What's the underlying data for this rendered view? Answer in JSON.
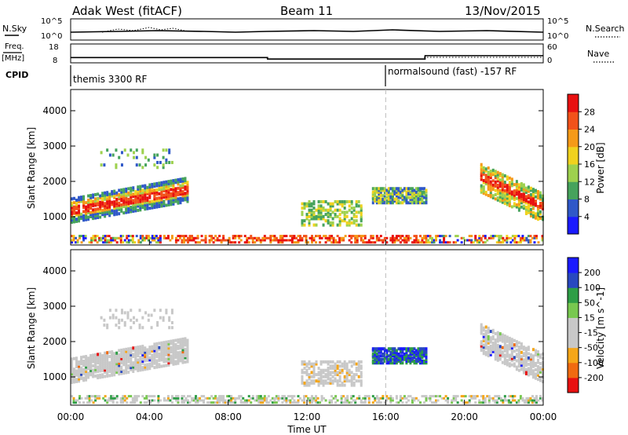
{
  "header": {
    "station": "Adak West (fitACF)",
    "beam": "Beam 11",
    "date": "13/Nov/2015"
  },
  "top_panels": {
    "nsky_label": "N.Sky",
    "nsky_ticks": [
      "10^5",
      "10^0"
    ],
    "nsearch_label": "N.Search",
    "freq_label_1": "Freq.",
    "freq_label_2": "[MHz]",
    "freq_ticks": [
      "18",
      "8"
    ],
    "nave_label": "Nave",
    "nave_ticks": [
      "60",
      "0"
    ],
    "cpid_label": "CPID",
    "cpid_segments": [
      "themis 3300 RF",
      "normalsound (fast) -157 RF"
    ]
  },
  "colors": {
    "background": "#ffffff",
    "ground_scatter": "#c8c8c8",
    "guide_line": "#bbbbbb",
    "power_scale": [
      "#1a1aff",
      "#2f58c8",
      "#46a35c",
      "#9ed14e",
      "#f0d21e",
      "#f59a18",
      "#f2521a",
      "#e81010"
    ],
    "velocity_scale": [
      "#e81010",
      "#f06a10",
      "#f5a618",
      "#c8c8c8",
      "#c8c8c8",
      "#78c850",
      "#2e9e46",
      "#2848c0",
      "#1a1aff"
    ]
  },
  "chart_data": [
    {
      "type": "heatmap",
      "name": "power",
      "ylabel": "Slant Range [km]",
      "xlabel": "Time UT",
      "xlim": [
        "00:00",
        "00:00"
      ],
      "ylim": [
        200,
        4600
      ],
      "x_ticks": [
        "00:00",
        "04:00",
        "08:00",
        "12:00",
        "16:00",
        "20:00",
        "00:00"
      ],
      "y_ticks": [
        1000,
        2000,
        3000,
        4000
      ],
      "colorbar_label": "Power [dB]",
      "colorbar_ticks": [
        "4",
        "8",
        "12",
        "16",
        "20",
        "24",
        "28"
      ],
      "regions": [
        {
          "t": [
            0.0,
            6.0
          ],
          "range": [
            900,
            2000
          ],
          "level": "high",
          "note": "intense band rising from ~1150 km to ~1700 km"
        },
        {
          "t": [
            1.5,
            5.2
          ],
          "range": [
            2300,
            2900
          ],
          "level": "low"
        },
        {
          "t": [
            11.7,
            14.8
          ],
          "range": [
            700,
            1400
          ],
          "level": "medium"
        },
        {
          "t": [
            15.3,
            18.1
          ],
          "range": [
            1350,
            1750
          ],
          "level": "medium"
        },
        {
          "t": [
            20.8,
            24.0
          ],
          "range": [
            900,
            2500
          ],
          "level": "high",
          "note": "band descending from ~2200 km to ~1100 km"
        },
        {
          "t": [
            0.0,
            24.0
          ],
          "range": [
            200,
            450
          ],
          "level": "mixed",
          "note": "near-range ground echoes"
        }
      ]
    },
    {
      "type": "heatmap",
      "name": "velocity",
      "ylabel": "Slant Range [km]",
      "xlabel": "Time UT",
      "ylim": [
        200,
        4600
      ],
      "x_ticks": [
        "00:00",
        "04:00",
        "08:00",
        "12:00",
        "16:00",
        "20:00",
        "00:00"
      ],
      "y_ticks": [
        1000,
        2000,
        3000,
        4000
      ],
      "colorbar_label": "Velocity [m s^-1]",
      "colorbar_ticks": [
        "200",
        "100",
        "50",
        "15",
        "-15",
        "-50",
        "-100",
        "-200"
      ],
      "regions": [
        {
          "t": [
            0.0,
            6.0
          ],
          "range": [
            900,
            2000
          ],
          "velocity": "ground scatter"
        },
        {
          "t": [
            11.7,
            14.8
          ],
          "range": [
            700,
            1400
          ],
          "velocity": "ground scatter"
        },
        {
          "t": [
            15.3,
            18.1
          ],
          "range": [
            1350,
            1750
          ],
          "velocity": "positive, 100 to 200"
        },
        {
          "t": [
            20.8,
            24.0
          ],
          "range": [
            900,
            2500
          ],
          "velocity": "ground scatter"
        },
        {
          "t": [
            0.0,
            24.0
          ],
          "range": [
            200,
            450
          ],
          "velocity": "mixed"
        }
      ]
    }
  ],
  "frequency_steps": [
    {
      "t": [
        0,
        10
      ],
      "mhz": 10.8
    },
    {
      "t": [
        10,
        18
      ],
      "mhz": 10.0
    },
    {
      "t": [
        18,
        24
      ],
      "mhz": 11.8
    }
  ]
}
